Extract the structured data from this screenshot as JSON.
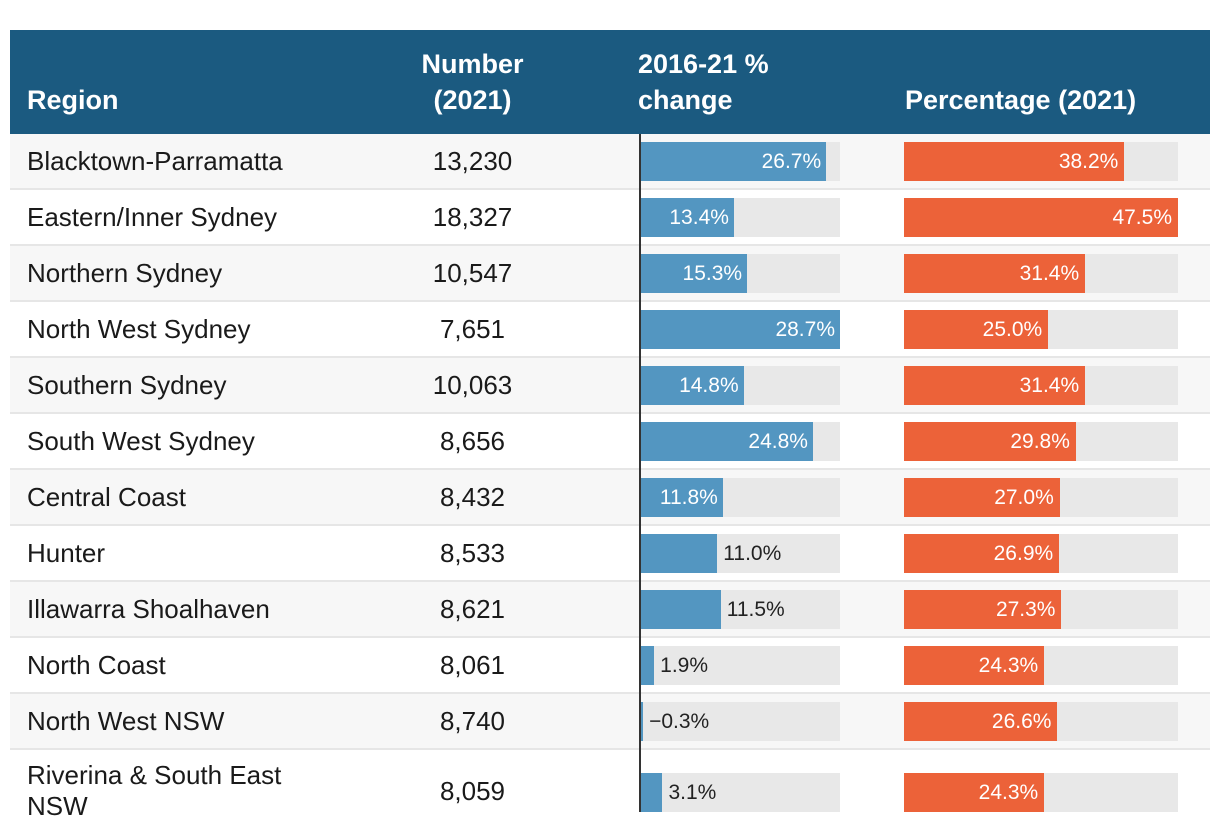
{
  "table": {
    "headers": {
      "region": "Region",
      "number_line1": "Number",
      "number_line2": "(2021)",
      "change_line1": "2016-21 %",
      "change_line2": "change",
      "percentage": "Percentage (2021)"
    }
  },
  "colors": {
    "header_bg": "#1b5a80",
    "change_bar": "#5396c1",
    "percentage_bar": "#ec6239",
    "track": "#e8e8e8"
  },
  "chart_data": {
    "type": "table",
    "columns": [
      "Region",
      "Number (2021)",
      "2016-21 % change",
      "Percentage (2021)"
    ],
    "change_scale_max": 28.7,
    "percentage_scale_max": 47.5,
    "rows": [
      {
        "region": "Blacktown-Parramatta",
        "number": "13,230",
        "change": 26.7,
        "change_label": "26.7%",
        "percentage": 38.2,
        "percentage_label": "38.2%"
      },
      {
        "region": "Eastern/Inner Sydney",
        "number": "18,327",
        "change": 13.4,
        "change_label": "13.4%",
        "percentage": 47.5,
        "percentage_label": "47.5%"
      },
      {
        "region": "Northern Sydney",
        "number": "10,547",
        "change": 15.3,
        "change_label": "15.3%",
        "percentage": 31.4,
        "percentage_label": "31.4%"
      },
      {
        "region": "North West Sydney",
        "number": "7,651",
        "change": 28.7,
        "change_label": "28.7%",
        "percentage": 25.0,
        "percentage_label": "25.0%"
      },
      {
        "region": "Southern Sydney",
        "number": "10,063",
        "change": 14.8,
        "change_label": "14.8%",
        "percentage": 31.4,
        "percentage_label": "31.4%"
      },
      {
        "region": "South West Sydney",
        "number": "8,656",
        "change": 24.8,
        "change_label": "24.8%",
        "percentage": 29.8,
        "percentage_label": "29.8%"
      },
      {
        "region": "Central Coast",
        "number": "8,432",
        "change": 11.8,
        "change_label": "11.8%",
        "percentage": 27.0,
        "percentage_label": "27.0%"
      },
      {
        "region": "Hunter",
        "number": "8,533",
        "change": 11.0,
        "change_label": "11.0%",
        "percentage": 26.9,
        "percentage_label": "26.9%"
      },
      {
        "region": "Illawarra Shoalhaven",
        "number": "8,621",
        "change": 11.5,
        "change_label": "11.5%",
        "percentage": 27.3,
        "percentage_label": "27.3%"
      },
      {
        "region": "North Coast",
        "number": "8,061",
        "change": 1.9,
        "change_label": "1.9%",
        "percentage": 24.3,
        "percentage_label": "24.3%"
      },
      {
        "region": "North West NSW",
        "number": "8,740",
        "change": -0.3,
        "change_label": "−0.3%",
        "percentage": 26.6,
        "percentage_label": "26.6%"
      },
      {
        "region": "Riverina & South East NSW",
        "number": "8,059",
        "change": 3.1,
        "change_label": "3.1%",
        "percentage": 24.3,
        "percentage_label": "24.3%"
      }
    ]
  }
}
